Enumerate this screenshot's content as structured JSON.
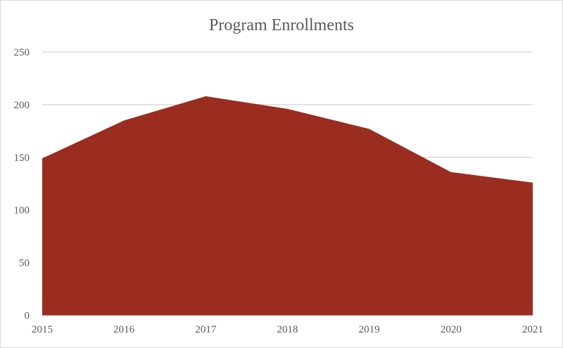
{
  "chart_data": {
    "type": "area",
    "title": "Program Enrollments",
    "xlabel": "",
    "ylabel": "",
    "categories": [
      "2015",
      "2016",
      "2017",
      "2018",
      "2019",
      "2020",
      "2021"
    ],
    "values": [
      149,
      185,
      208,
      196,
      177,
      136,
      126
    ],
    "ylim": [
      0,
      250
    ],
    "yticks": [
      0,
      50,
      100,
      150,
      200,
      250
    ],
    "grid": true,
    "legend": "none",
    "colors": {
      "fill": "#9a2d1f",
      "grid": "#d9d9d9",
      "text": "#595959"
    }
  }
}
